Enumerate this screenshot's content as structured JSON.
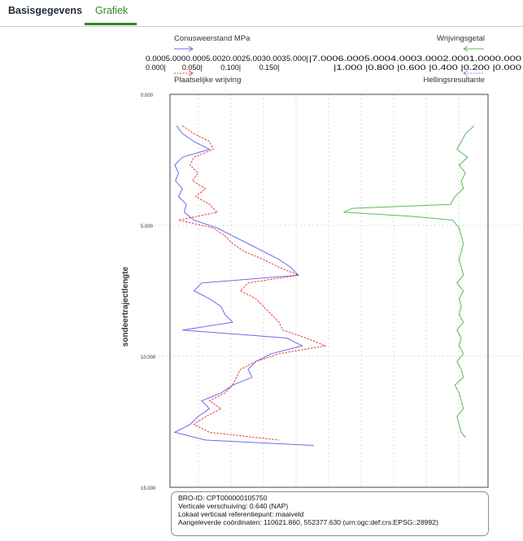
{
  "tabs": [
    {
      "label": "Basisgegevens"
    },
    {
      "label": "Grafiek",
      "active": true
    }
  ],
  "colors": {
    "cone": "#6a6af0",
    "friction": "#e53a3a",
    "green": "#5cb85c",
    "accent": "#2e8a23"
  },
  "chart_data": {
    "type": "line",
    "ylabel": "sondeertrajectlengte",
    "ylim": [
      0,
      15
    ],
    "y_tick_labels": [
      "0.000",
      "5.000",
      "10.000",
      "15.000"
    ],
    "top_axes": {
      "left": {
        "title_upper": "Conusweerstand MPa",
        "title_lower": "Plaatselijke wrijving",
        "tick_row_upper": "0.0005.0000.0005.0020.0025.0030.0035.000|",
        "tick_row_lower": "0.000|        0.050|         0.100|         0.150|"
      },
      "right": {
        "title_upper": "Wrijvingsgetal",
        "title_lower": "Hellingsresultante",
        "tick_row_upper": "|7.0006.0005.0004.0003.0002.0001.0000.000",
        "tick_row_lower": "|1.000 |0.800 |0.600 |0.400 |0.200 |0.000"
      }
    },
    "series": [
      {
        "name": "Conusweerstand MPa",
        "color": "#6a6af0",
        "style": "solid",
        "axis": "conus",
        "xlim": [
          0,
          40
        ],
        "depth": [
          1.2,
          1.5,
          1.8,
          2.1,
          2.4,
          2.7,
          3.0,
          3.3,
          3.6,
          3.9,
          4.2,
          4.5,
          4.8,
          5.1,
          5.4,
          5.7,
          6.0,
          6.3,
          6.6,
          6.9,
          7.2,
          7.5,
          7.8,
          8.1,
          8.4,
          8.7,
          9.0,
          9.3,
          9.6,
          9.9,
          10.2,
          10.5,
          10.8,
          11.1,
          11.4,
          11.7,
          12.0,
          12.3,
          12.6,
          12.9,
          13.2,
          13.4
        ],
        "values": [
          1.5,
          3.0,
          6.0,
          10.0,
          3.0,
          1.0,
          2.0,
          1.2,
          3.0,
          2.0,
          4.0,
          3.5,
          6.0,
          12.0,
          16.0,
          20.0,
          24.0,
          28.0,
          31.0,
          33.0,
          8.0,
          6.0,
          10.0,
          13.0,
          14.0,
          16.0,
          3.0,
          30.0,
          34.0,
          26.0,
          22.0,
          20.0,
          21.0,
          16.0,
          13.0,
          8.0,
          10.0,
          7.0,
          5.0,
          1.0,
          9.0,
          37.0
        ]
      },
      {
        "name": "Plaatselijke wrijving",
        "color": "#e53a3a",
        "style": "dashed",
        "axis": "wrijving",
        "xlim": [
          0,
          0.2
        ],
        "depth": [
          1.2,
          1.5,
          1.8,
          2.1,
          2.4,
          2.7,
          3.0,
          3.3,
          3.6,
          3.9,
          4.2,
          4.5,
          4.8,
          5.1,
          5.4,
          5.7,
          6.0,
          6.3,
          6.6,
          6.9,
          7.2,
          7.5,
          7.8,
          8.1,
          8.4,
          8.7,
          9.0,
          9.3,
          9.6,
          9.9,
          10.2,
          10.5,
          10.8,
          11.1,
          11.4,
          11.7,
          12.0,
          12.3,
          12.6,
          12.9,
          13.2
        ],
        "values": [
          0.015,
          0.03,
          0.05,
          0.055,
          0.03,
          0.025,
          0.035,
          0.028,
          0.045,
          0.032,
          0.05,
          0.06,
          0.01,
          0.055,
          0.07,
          0.08,
          0.095,
          0.12,
          0.14,
          0.165,
          0.1,
          0.09,
          0.11,
          0.12,
          0.13,
          0.14,
          0.145,
          0.175,
          0.2,
          0.14,
          0.11,
          0.09,
          0.085,
          0.08,
          0.07,
          0.05,
          0.065,
          0.045,
          0.03,
          0.05,
          0.14
        ]
      },
      {
        "name": "Wrijvingsgetal",
        "color": "#5cb85c",
        "style": "solid",
        "axis": "wrijvingsgetal",
        "xlim": [
          0,
          7
        ],
        "reversed": true,
        "depth": [
          1.2,
          1.5,
          1.8,
          2.1,
          2.4,
          2.7,
          3.0,
          3.3,
          3.6,
          3.9,
          4.2,
          4.35,
          4.5,
          4.65,
          4.8,
          5.1,
          5.4,
          5.7,
          6.0,
          6.3,
          6.6,
          6.9,
          7.2,
          7.5,
          7.8,
          8.1,
          8.4,
          8.7,
          9.0,
          9.3,
          9.6,
          9.9,
          10.2,
          10.5,
          10.8,
          11.1,
          11.4,
          11.7,
          12.0,
          12.3,
          12.6,
          12.9,
          13.1
        ],
        "values": [
          0.5,
          0.9,
          1.1,
          1.3,
          0.8,
          1.2,
          0.9,
          1.1,
          1.0,
          1.4,
          1.6,
          6.2,
          6.6,
          3.5,
          1.5,
          1.2,
          1.1,
          1.0,
          1.1,
          1.2,
          1.1,
          1.0,
          1.3,
          1.0,
          1.2,
          1.1,
          1.2,
          1.0,
          1.3,
          1.1,
          1.2,
          1.0,
          1.3,
          1.1,
          1.0,
          1.4,
          1.2,
          1.1,
          1.0,
          1.3,
          1.2,
          1.1,
          0.9
        ]
      }
    ],
    "grid": true
  },
  "info": {
    "bro_id": "BRO-ID: CPT000000105750",
    "verticale_verschuiving": "Verticale verschuiving: 0.640 (NAP)",
    "referentiepunt": "Lokaal verticaal referentiepunt: maaiveld",
    "coordinaten": "Aangeleverde coördinaten: 110621.860, 552377.630 (urn:ogc:def:crs:EPSG::28992)"
  }
}
